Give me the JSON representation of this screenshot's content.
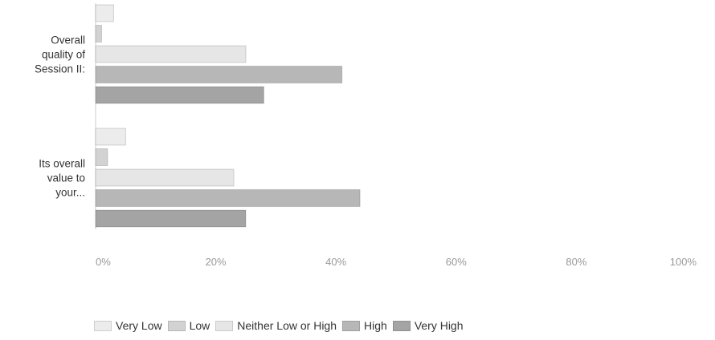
{
  "chart_data": {
    "type": "bar",
    "orientation": "horizontal",
    "categories": [
      [
        "Overall",
        "quality of",
        "Session II:"
      ],
      [
        "Its overall",
        "value to",
        "your..."
      ]
    ],
    "series": [
      {
        "name": "Very Low",
        "color": "#ececec",
        "values": [
          3,
          5
        ]
      },
      {
        "name": "Low",
        "color": "#d2d2d2",
        "values": [
          1,
          2
        ]
      },
      {
        "name": "Neither Low or High",
        "color": "#e6e6e6",
        "values": [
          25,
          23
        ]
      },
      {
        "name": "High",
        "color": "#b7b7b7",
        "values": [
          41,
          44
        ]
      },
      {
        "name": "Very High",
        "color": "#a4a4a4",
        "values": [
          28,
          25
        ]
      }
    ],
    "x_ticks": [
      "0%",
      "20%",
      "40%",
      "60%",
      "80%",
      "100%"
    ],
    "xlim": [
      0,
      100
    ],
    "grid": false,
    "legend_position": "bottom"
  }
}
